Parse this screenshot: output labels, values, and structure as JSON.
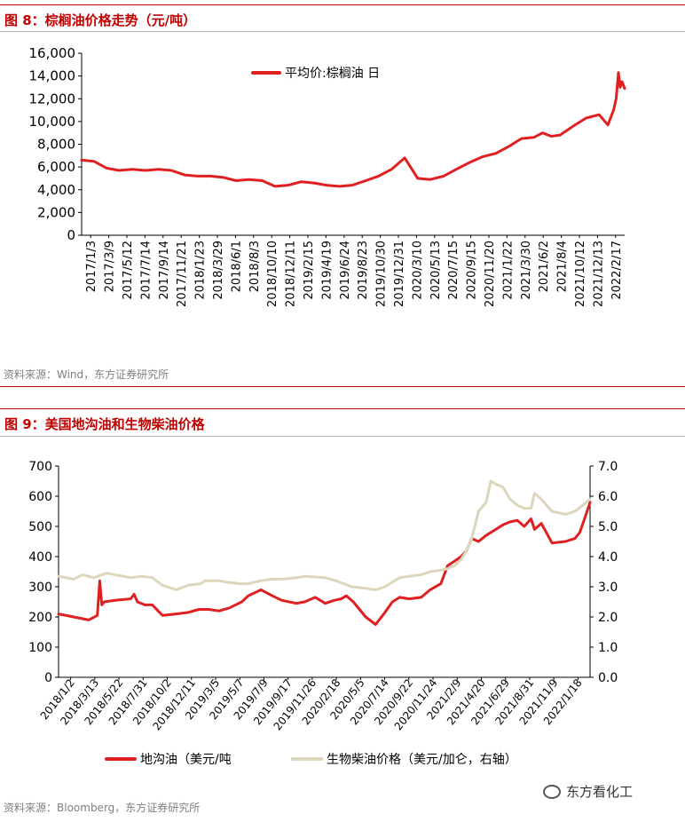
{
  "fig8": {
    "title": "图 8：棕榈油价格走势（元/吨）",
    "source": "资料来源：Wind，东方证券研究所"
  },
  "fig9": {
    "title": "图 9：美国地沟油和生物柴油价格",
    "source": "资料来源：Bloomberg，东方证券研究所"
  },
  "watermark": {
    "text": "东方看化工",
    "icon": "wechat-icon"
  },
  "chart_data": [
    {
      "type": "line",
      "title": "图 8：棕榈油价格走势（元/吨）",
      "legend": "top-center",
      "grid": false,
      "ylim": [
        0,
        16000
      ],
      "yticks": [
        0,
        2000,
        4000,
        6000,
        8000,
        10000,
        12000,
        14000,
        16000
      ],
      "ytick_labels": [
        "0",
        "2,000",
        "4,000",
        "6,000",
        "8,000",
        "10,000",
        "12,000",
        "14,000",
        "16,000"
      ],
      "x_range": [
        "2017-01-03",
        "2022-03-31"
      ],
      "xtick_labels": [
        "2017/1/3",
        "2017/3/9",
        "2017/5/12",
        "2017/7/14",
        "2017/9/14",
        "2017/11/21",
        "2018/1/23",
        "2018/3/29",
        "2018/6/1",
        "2018/8/3",
        "2018/10/10",
        "2018/12/11",
        "2019/2/15",
        "2019/4/19",
        "2019/6/24",
        "2019/8/23",
        "2019/10/30",
        "2019/12/31",
        "2020/3/10",
        "2020/5/13",
        "2020/7/15",
        "2020/9/15",
        "2020/11/20",
        "2021/1/22",
        "2021/3/30",
        "2021/6/2",
        "2021/8/4",
        "2021/10/12",
        "2021/12/13",
        "2022/2/17"
      ],
      "series": [
        {
          "name": "平均价:棕榈油 日",
          "color": "#e02020",
          "x": [
            "2017-01-03",
            "2017-02-15",
            "2017-04-01",
            "2017-05-15",
            "2017-07-01",
            "2017-08-15",
            "2017-10-01",
            "2017-11-15",
            "2018-01-01",
            "2018-02-15",
            "2018-04-01",
            "2018-05-15",
            "2018-07-01",
            "2018-08-15",
            "2018-10-01",
            "2018-11-15",
            "2019-01-01",
            "2019-02-15",
            "2019-04-01",
            "2019-05-15",
            "2019-07-01",
            "2019-08-15",
            "2019-10-01",
            "2019-11-15",
            "2019-12-31",
            "2020-02-15",
            "2020-04-01",
            "2020-05-15",
            "2020-07-01",
            "2020-08-15",
            "2020-10-01",
            "2020-11-15",
            "2021-01-01",
            "2021-02-15",
            "2021-04-01",
            "2021-05-15",
            "2021-06-15",
            "2021-07-15",
            "2021-08-15",
            "2021-10-01",
            "2021-11-15",
            "2021-12-31",
            "2022-01-31",
            "2022-02-20",
            "2022-03-01",
            "2022-03-09",
            "2022-03-15",
            "2022-03-22",
            "2022-03-31"
          ],
          "y": [
            6600,
            6500,
            5900,
            5700,
            5800,
            5700,
            5800,
            5700,
            5300,
            5200,
            5200,
            5100,
            4800,
            4900,
            4800,
            4300,
            4400,
            4700,
            4600,
            4400,
            4300,
            4400,
            4800,
            5200,
            5800,
            6800,
            5000,
            4900,
            5200,
            5800,
            6400,
            6900,
            7200,
            7800,
            8500,
            8600,
            9000,
            8700,
            8800,
            9600,
            10300,
            10600,
            9700,
            11000,
            12000,
            14300,
            13000,
            13500,
            12900
          ]
        }
      ]
    },
    {
      "type": "line",
      "title": "图 9：美国地沟油和生物柴油价格",
      "legend": "bottom",
      "grid": false,
      "ylim": [
        0,
        700
      ],
      "yticks": [
        0,
        100,
        200,
        300,
        400,
        500,
        600,
        700
      ],
      "y2lim": [
        0,
        7
      ],
      "y2ticks": [
        "0.0",
        "1.0",
        "2.0",
        "3.0",
        "4.0",
        "5.0",
        "6.0",
        "7.0"
      ],
      "x_range": [
        "2018-01-02",
        "2022-03-31"
      ],
      "xtick_labels": [
        "2018/1/2",
        "2018/3/13",
        "2018/5/22",
        "2018/7/31",
        "2018/10/2",
        "2018/12/11",
        "2019/3/5",
        "2019/5/7",
        "2019/7/9",
        "2019/9/17",
        "2019/11/26",
        "2020/2/18",
        "2020/5/5",
        "2020/7/14",
        "2020/9/22",
        "2020/11/24",
        "2021/2/9",
        "2021/4/20",
        "2021/6/29",
        "2021/8/31",
        "2021/11/9",
        "2022/1/18"
      ],
      "series": [
        {
          "name": "地沟油（美元/吨",
          "axis": "left",
          "color": "#e02020",
          "x": [
            "2018-01-02",
            "2018-02-15",
            "2018-03-31",
            "2018-04-25",
            "2018-05-02",
            "2018-05-08",
            "2018-05-15",
            "2018-06-15",
            "2018-07-31",
            "2018-08-10",
            "2018-08-20",
            "2018-09-10",
            "2018-10-02",
            "2018-11-01",
            "2018-12-11",
            "2019-01-15",
            "2019-02-15",
            "2019-03-15",
            "2019-04-15",
            "2019-05-15",
            "2019-06-20",
            "2019-07-09",
            "2019-08-15",
            "2019-09-17",
            "2019-10-15",
            "2019-11-26",
            "2019-12-20",
            "2020-01-20",
            "2020-02-18",
            "2020-03-15",
            "2020-04-05",
            "2020-04-20",
            "2020-05-10",
            "2020-06-15",
            "2020-07-14",
            "2020-08-10",
            "2020-09-01",
            "2020-09-22",
            "2020-10-20",
            "2020-11-24",
            "2020-12-20",
            "2021-01-20",
            "2021-02-09",
            "2021-03-01",
            "2021-03-20",
            "2021-04-05",
            "2021-04-20",
            "2021-05-10",
            "2021-06-01",
            "2021-06-29",
            "2021-07-20",
            "2021-08-10",
            "2021-08-31",
            "2021-09-20",
            "2021-10-10",
            "2021-10-20",
            "2021-11-09",
            "2021-12-10",
            "2022-01-18",
            "2022-02-15",
            "2022-03-01",
            "2022-03-15",
            "2022-03-31"
          ],
          "y": [
            210,
            200,
            190,
            205,
            320,
            240,
            250,
            255,
            260,
            275,
            250,
            240,
            240,
            205,
            210,
            215,
            225,
            225,
            220,
            230,
            250,
            270,
            290,
            270,
            255,
            245,
            250,
            265,
            245,
            255,
            260,
            270,
            250,
            200,
            175,
            215,
            250,
            265,
            260,
            265,
            290,
            310,
            370,
            385,
            400,
            420,
            460,
            450,
            470,
            490,
            505,
            515,
            520,
            500,
            525,
            490,
            510,
            445,
            450,
            460,
            480,
            525,
            580
          ]
        },
        {
          "name": "生物柴油价格（美元/加仑，右轴）",
          "axis": "right",
          "color": "#ddd5bc",
          "x": [
            "2018-01-02",
            "2018-02-15",
            "2018-03-13",
            "2018-04-15",
            "2018-05-22",
            "2018-06-15",
            "2018-07-31",
            "2018-09-01",
            "2018-10-02",
            "2018-11-01",
            "2018-12-11",
            "2019-01-15",
            "2019-02-20",
            "2019-03-05",
            "2019-04-15",
            "2019-05-07",
            "2019-06-15",
            "2019-07-09",
            "2019-08-15",
            "2019-09-17",
            "2019-10-15",
            "2019-11-26",
            "2019-12-20",
            "2020-02-18",
            "2020-03-20",
            "2020-05-05",
            "2020-06-15",
            "2020-07-14",
            "2020-08-10",
            "2020-09-22",
            "2020-10-20",
            "2020-11-24",
            "2020-12-20",
            "2021-01-20",
            "2021-02-09",
            "2021-03-01",
            "2021-03-20",
            "2021-04-05",
            "2021-04-20",
            "2021-05-10",
            "2021-06-01",
            "2021-06-15",
            "2021-06-29",
            "2021-07-20",
            "2021-08-10",
            "2021-08-31",
            "2021-09-20",
            "2021-10-10",
            "2021-10-20",
            "2021-11-09",
            "2021-12-10",
            "2022-01-18",
            "2022-02-15",
            "2022-03-10",
            "2022-03-31"
          ],
          "y": [
            3.35,
            3.25,
            3.4,
            3.3,
            3.45,
            3.4,
            3.3,
            3.35,
            3.3,
            3.05,
            2.9,
            3.05,
            3.1,
            3.2,
            3.2,
            3.15,
            3.1,
            3.1,
            3.2,
            3.25,
            3.25,
            3.3,
            3.35,
            3.3,
            3.2,
            3.0,
            2.95,
            2.9,
            3.0,
            3.3,
            3.35,
            3.4,
            3.5,
            3.55,
            3.6,
            3.7,
            3.9,
            4.2,
            4.6,
            5.5,
            5.8,
            6.5,
            6.4,
            6.3,
            5.9,
            5.7,
            5.6,
            5.6,
            6.1,
            5.9,
            5.5,
            5.4,
            5.5,
            5.7,
            5.9
          ]
        }
      ]
    }
  ]
}
